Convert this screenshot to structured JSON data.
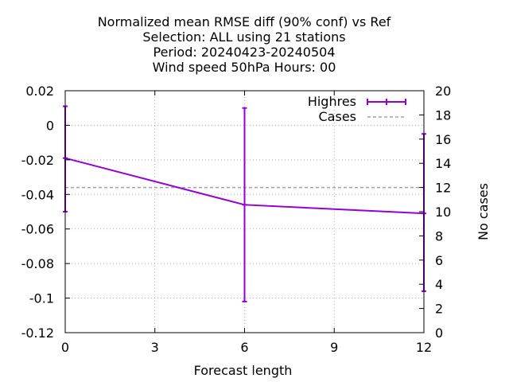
{
  "chart_data": {
    "type": "line",
    "title_lines": [
      "Normalized mean RMSE diff (90% conf) vs Ref",
      "Selection: ALL using    21 stations",
      "Period: 20240423-20240504",
      "Wind speed 50hPa   Hours:  00"
    ],
    "xlabel": "Forecast length",
    "ylabel": "",
    "y2label": "No cases",
    "xlim": [
      0,
      12
    ],
    "ylim": [
      -0.12,
      0.02
    ],
    "y2lim": [
      0,
      20
    ],
    "xticks": [
      0,
      3,
      6,
      9,
      12
    ],
    "yticks": [
      0.02,
      0,
      -0.02,
      -0.04,
      -0.06,
      -0.08,
      -0.1,
      -0.12
    ],
    "ytick_labels": [
      "0.02",
      "0",
      "-0.02",
      "-0.04",
      "-0.06",
      "-0.08",
      "-0.1",
      "-0.12"
    ],
    "y2ticks": [
      0,
      2,
      4,
      6,
      8,
      10,
      12,
      14,
      16,
      18,
      20
    ],
    "grid": true,
    "legend_position": "top-right",
    "series": [
      {
        "name": "Highres",
        "color": "#9400d3",
        "x": [
          0,
          6,
          12
        ],
        "y": [
          -0.019,
          -0.046,
          -0.051
        ],
        "err_low": [
          -0.05,
          -0.102,
          -0.096
        ],
        "err_high": [
          0.011,
          0.01,
          -0.005
        ]
      },
      {
        "name": "Cases",
        "color": "#a0a0a0",
        "style": "dashed",
        "axis": "y2",
        "x": [
          0,
          6,
          12
        ],
        "y": [
          12,
          12,
          12
        ]
      }
    ]
  }
}
